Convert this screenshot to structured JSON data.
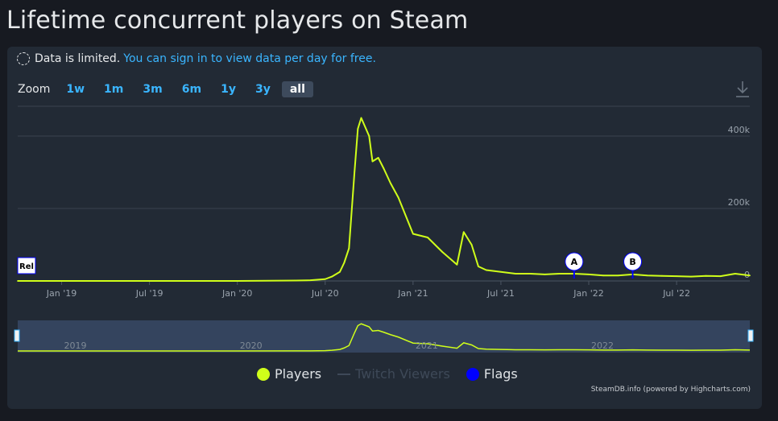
{
  "page": {
    "title": "Lifetime concurrent players on Steam"
  },
  "notice": {
    "text": "Data is limited.",
    "link": "You can sign in to view data per day for free."
  },
  "zoom": {
    "label": "Zoom",
    "buttons": [
      "1w",
      "1m",
      "3m",
      "6m",
      "1y",
      "3y",
      "all"
    ],
    "active": "all"
  },
  "legend": {
    "players": "Players",
    "twitch": "Twitch Viewers",
    "flags": "Flags"
  },
  "credits": "SteamDB.info (powered by Highcharts.com)",
  "colors": {
    "players": "#d0ff1a",
    "flags": "#0000ff",
    "accent": "#3ab5ff"
  },
  "chart_data": {
    "type": "line",
    "title": "",
    "y_ticks": [
      "400k",
      "200k",
      "0"
    ],
    "y_tick_values": [
      400000,
      200000,
      0
    ],
    "ylim": [
      0,
      480000
    ],
    "x_ticks": [
      "Jan '19",
      "Jul '19",
      "Jan '20",
      "Jul '20",
      "Jan '21",
      "Jul '21",
      "Jan '22",
      "Jul '22"
    ],
    "x_tick_dates": [
      "2019-01",
      "2019-07",
      "2020-01",
      "2020-07",
      "2021-01",
      "2021-07",
      "2022-01",
      "2022-07"
    ],
    "xlim": [
      "2018-10",
      "2022-12"
    ],
    "navigator_years": [
      "2019",
      "2020",
      "2021",
      "2022"
    ],
    "flags": [
      {
        "label": "Rel",
        "date": "2018-10"
      },
      {
        "label": "A",
        "date": "2021-12"
      },
      {
        "label": "B",
        "date": "2022-04"
      }
    ],
    "series": [
      {
        "name": "Players",
        "x": [
          "2018-10",
          "2019-01",
          "2019-07",
          "2020-01",
          "2020-05",
          "2020-06",
          "2020-07",
          "2020-07-15",
          "2020-08",
          "2020-08-10",
          "2020-08-20",
          "2020-09",
          "2020-09-08",
          "2020-09-15",
          "2020-10",
          "2020-10-08",
          "2020-10-20",
          "2020-11",
          "2020-11-15",
          "2020-12",
          "2021-01",
          "2021-02",
          "2021-03",
          "2021-04",
          "2021-04-15",
          "2021-05",
          "2021-05-15",
          "2021-06",
          "2021-07",
          "2021-08",
          "2021-09",
          "2021-10",
          "2021-11",
          "2021-12",
          "2022-01",
          "2022-02",
          "2022-03",
          "2022-04",
          "2022-05",
          "2022-06",
          "2022-07",
          "2022-08",
          "2022-09",
          "2022-10",
          "2022-11",
          "2022-12"
        ],
        "values": [
          0,
          0,
          0,
          0,
          1000,
          2000,
          5000,
          12000,
          25000,
          50000,
          90000,
          300000,
          420000,
          450000,
          400000,
          330000,
          340000,
          310000,
          270000,
          230000,
          130000,
          120000,
          80000,
          45000,
          135000,
          100000,
          40000,
          30000,
          25000,
          20000,
          20000,
          18000,
          20000,
          20000,
          18000,
          15000,
          15000,
          18000,
          15000,
          14000,
          13000,
          12000,
          14000,
          13000,
          20000,
          15000
        ]
      }
    ],
    "grid": true
  }
}
